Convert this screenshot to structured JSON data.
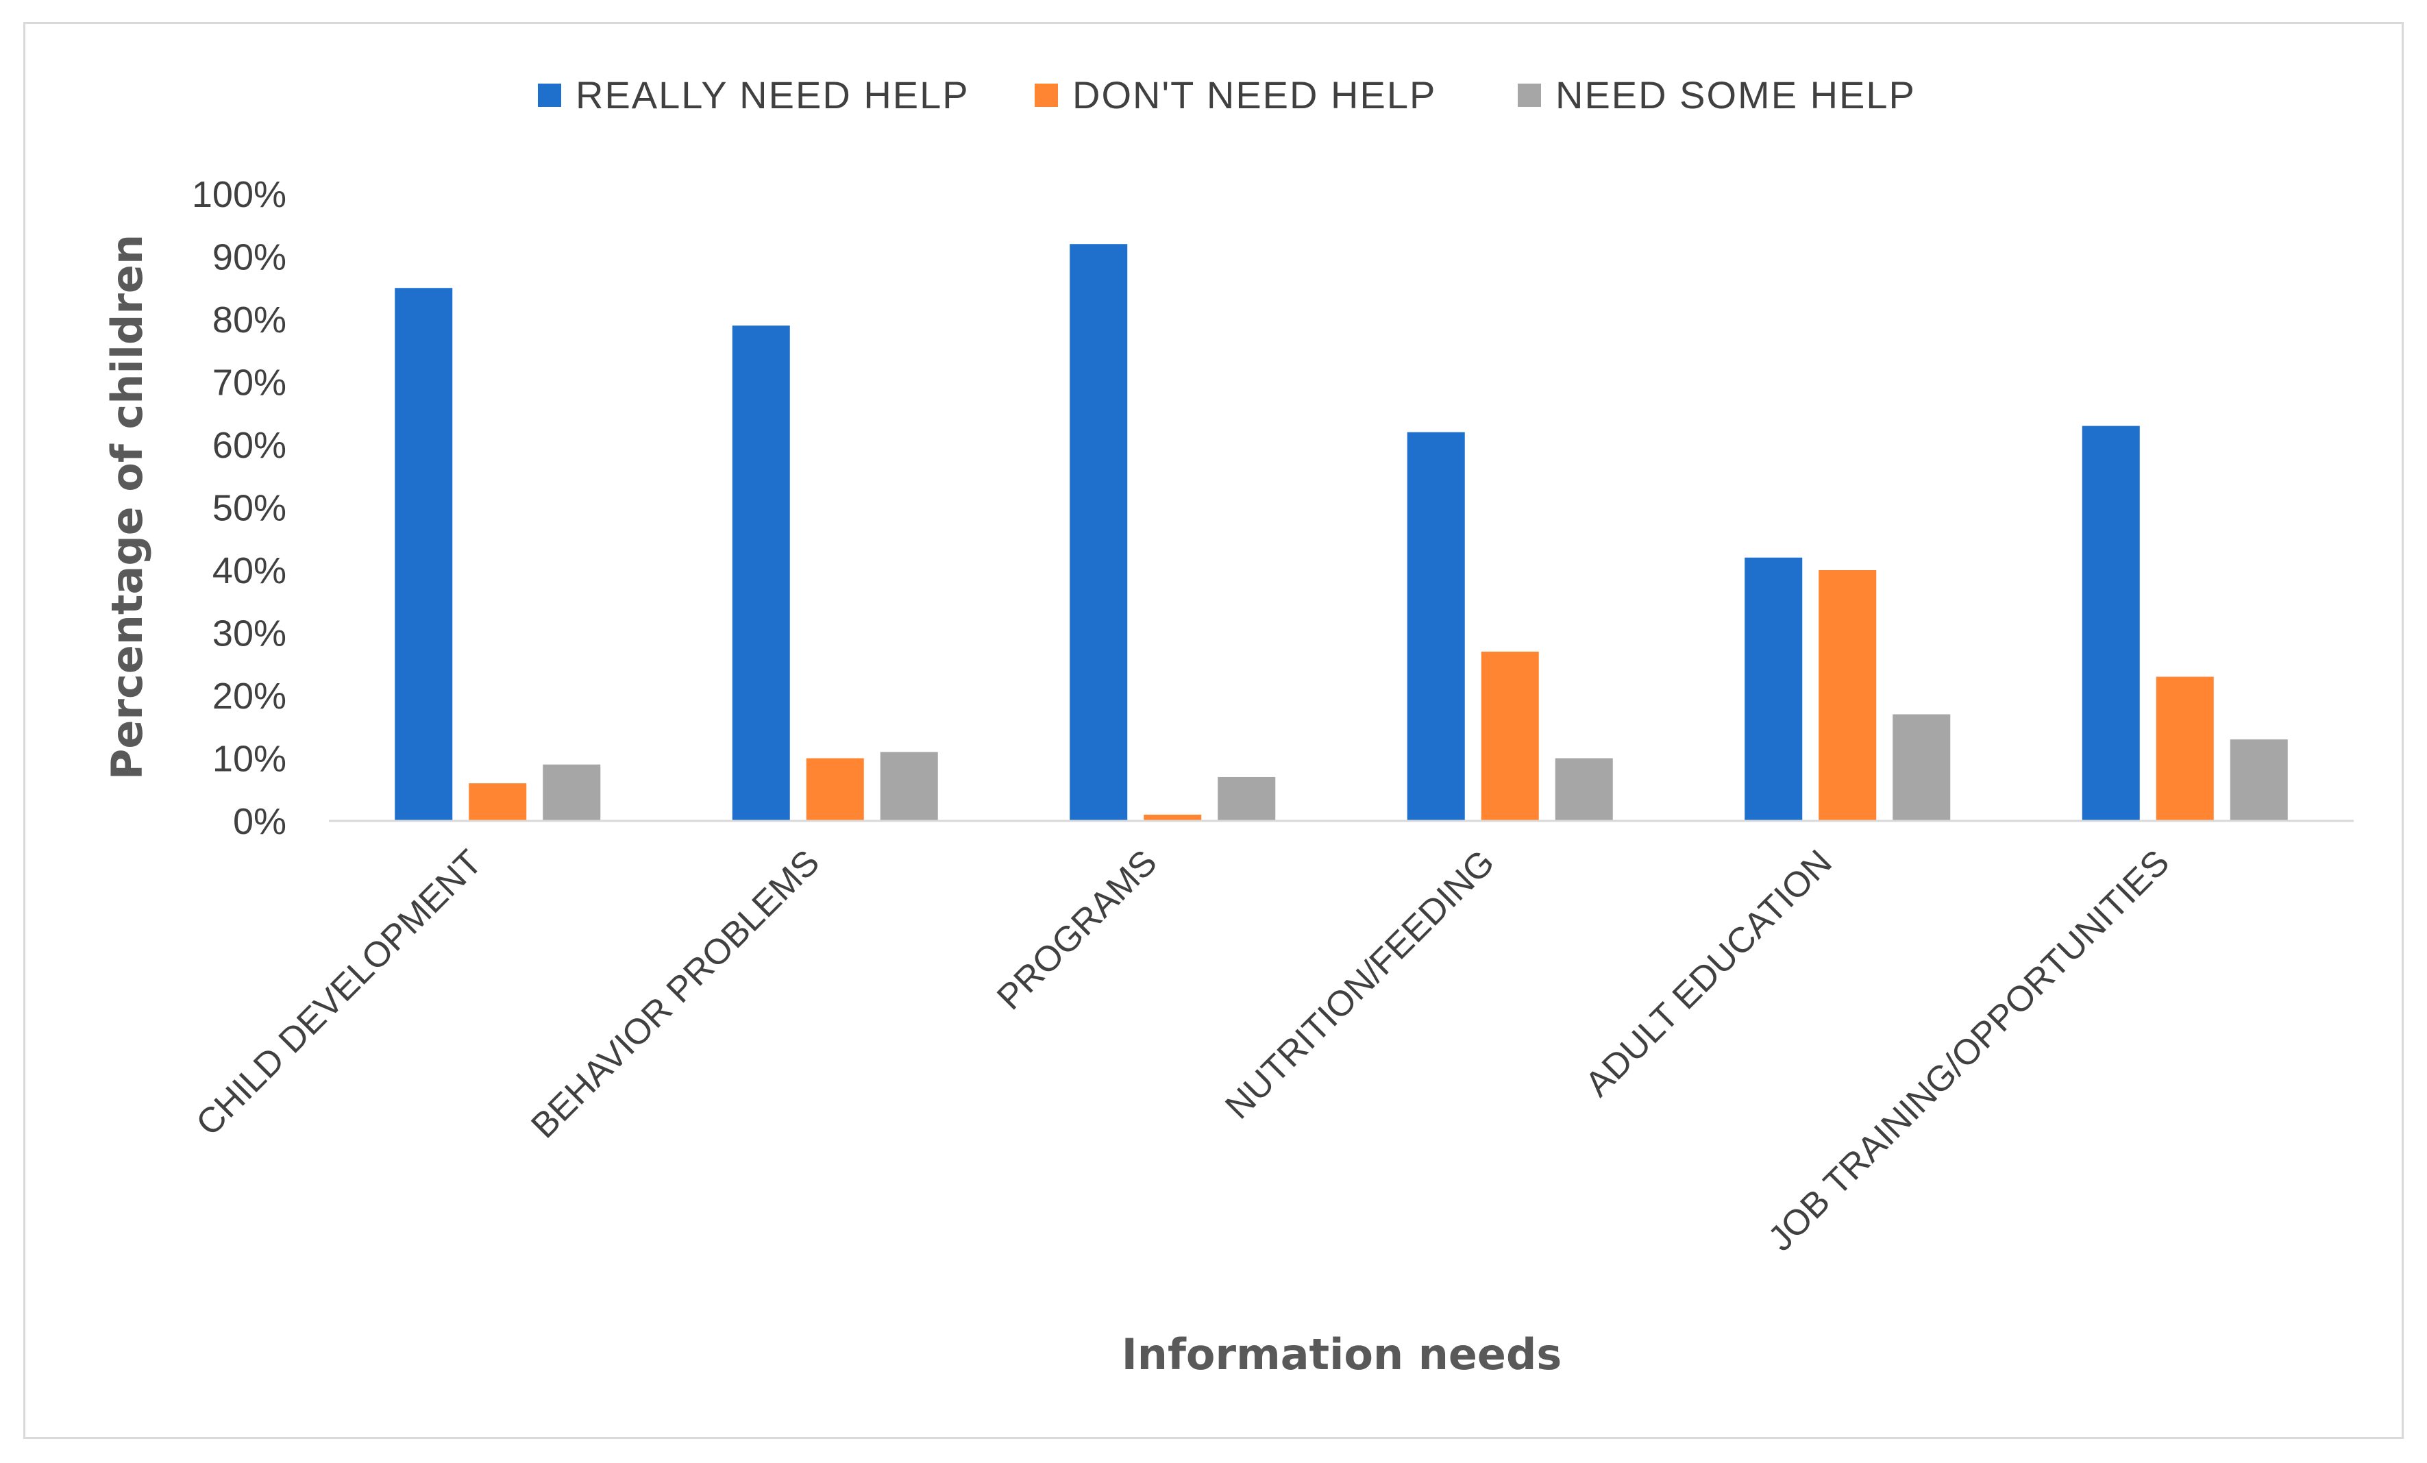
{
  "chart_data": {
    "type": "bar",
    "title": "",
    "xlabel": "Information needs",
    "ylabel": "Percentage of children",
    "ylim": [
      0,
      100
    ],
    "yticks": [
      "0%",
      "10%",
      "20%",
      "30%",
      "40%",
      "50%",
      "60%",
      "70%",
      "80%",
      "90%",
      "100%"
    ],
    "categories": [
      "CHILD DEVELOPMENT",
      "BEHAVIOR PROBLEMS",
      "PROGRAMS",
      "NUTRITION/FEEDING",
      "ADULT EDUCATION",
      "JOB TRAINING/OPPORTUNITIES"
    ],
    "series": [
      {
        "name": "REALLY NEED HELP",
        "color": "#1f6fcc",
        "values": [
          85,
          79,
          92,
          62,
          42,
          63
        ]
      },
      {
        "name": "DON'T NEED HELP",
        "color": "#ff8533",
        "values": [
          6,
          10,
          1,
          27,
          40,
          23
        ]
      },
      {
        "name": "NEED SOME HELP",
        "color": "#a6a6a6",
        "values": [
          9,
          11,
          7,
          10,
          17,
          13
        ]
      }
    ],
    "legend_position": "top",
    "grid": false
  }
}
